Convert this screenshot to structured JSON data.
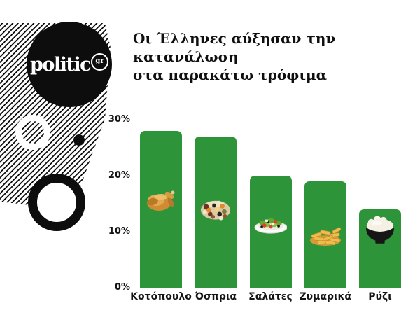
{
  "brand": {
    "logo_text": "politic",
    "logo_suffix": "gr"
  },
  "title": {
    "line1": "Οι Έλληνες αύξησαν την κατανάλωση",
    "line2": "στα παρακάτω τρόφιμα"
  },
  "chart_data": {
    "type": "bar",
    "title": "Οι Έλληνες αύξησαν την κατανάλωση στα παρακάτω τρόφιμα",
    "categories": [
      "Κοτόπουλο",
      "Όσπρια",
      "Σαλάτες",
      "Ζυμαρικά",
      "Ρύζι"
    ],
    "values": [
      28,
      27,
      20,
      19,
      14
    ],
    "unit": "%",
    "icons": [
      "chicken-icon",
      "legumes-icon",
      "salad-icon",
      "pasta-icon",
      "rice-icon"
    ],
    "y_ticks": [
      "30%",
      "20%",
      "10%",
      "0%"
    ],
    "ylim": [
      0,
      30
    ],
    "grid": true,
    "legend_position": "none",
    "bar_color": "#2e9439",
    "gridline_color": "#e8e8e8",
    "label_color": "#141414"
  }
}
